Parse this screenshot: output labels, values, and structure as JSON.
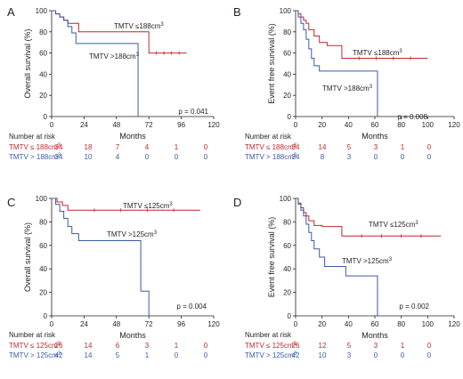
{
  "colors": {
    "red": "#c0272d",
    "blue": "#3c5aa6",
    "axis": "#231f20"
  },
  "risk_title": "Number at risk",
  "chart_data": [
    {
      "type": "line",
      "panel": "A",
      "xlabel": "Months",
      "ylabel": "Overall survival (%)",
      "xlim": [
        0,
        120
      ],
      "ylim": [
        0,
        100
      ],
      "xticks": [
        "0",
        "24",
        "48",
        "72",
        "96",
        "120"
      ],
      "yticks": [
        "0",
        "20",
        "40",
        "60",
        "80",
        "100"
      ],
      "p_value": "p = 0.041",
      "series": [
        {
          "name": "TMTV ≤188cm³",
          "color": "red",
          "x": [
            0,
            3,
            6,
            9,
            12,
            20,
            72,
            100
          ],
          "y": [
            100,
            97,
            94,
            91,
            88,
            80,
            60,
            60
          ]
        },
        {
          "name": "TMTV >188cm³",
          "color": "blue",
          "x": [
            0,
            3,
            6,
            9,
            12,
            15,
            18,
            64,
            64
          ],
          "y": [
            100,
            97,
            94,
            91,
            85,
            79,
            69,
            69,
            0
          ]
        }
      ],
      "risk_table": {
        "rows": [
          {
            "label": "TMTV ≤ 188cm³",
            "color": "red",
            "values": [
              "34",
              "18",
              "7",
              "4",
              "1",
              "0"
            ]
          },
          {
            "label": "TMTV > 188cm³",
            "color": "blue",
            "values": [
              "34",
              "10",
              "4",
              "0",
              "0",
              "0"
            ]
          }
        ]
      }
    },
    {
      "type": "line",
      "panel": "B",
      "xlabel": "Months",
      "ylabel": "Event free survival (%)",
      "xlim": [
        0,
        120
      ],
      "ylim": [
        0,
        100
      ],
      "xticks": [
        "0",
        "20",
        "40",
        "60",
        "80",
        "100",
        "120"
      ],
      "yticks": [
        "0",
        "20",
        "40",
        "60",
        "80",
        "100"
      ],
      "p_value": "p = 0.008",
      "series": [
        {
          "name": "TMTV ≤188cm³",
          "color": "red",
          "x": [
            0,
            2,
            4,
            6,
            8,
            10,
            14,
            18,
            24,
            35,
            100
          ],
          "y": [
            100,
            97,
            94,
            91,
            88,
            82,
            76,
            70,
            67,
            55,
            55
          ]
        },
        {
          "name": "TMTV >188cm³",
          "color": "blue",
          "x": [
            0,
            2,
            4,
            6,
            8,
            10,
            12,
            14,
            18,
            62,
            62
          ],
          "y": [
            100,
            94,
            88,
            82,
            73,
            64,
            55,
            48,
            43,
            43,
            0
          ]
        }
      ],
      "risk_table": {
        "rows": [
          {
            "label": "TMTV ≤ 188cm³",
            "color": "red",
            "values": [
              "34",
              "14",
              "5",
              "3",
              "1",
              "0"
            ]
          },
          {
            "label": "TMTV > 188cm³",
            "color": "blue",
            "values": [
              "34",
              "8",
              "3",
              "0",
              "0",
              "0"
            ]
          }
        ]
      }
    },
    {
      "type": "line",
      "panel": "C",
      "xlabel": "Months",
      "ylabel": "Overall survival (%)",
      "xlim": [
        0,
        120
      ],
      "ylim": [
        0,
        100
      ],
      "xticks": [
        "0",
        "24",
        "48",
        "72",
        "96",
        "120"
      ],
      "yticks": [
        "0",
        "20",
        "40",
        "60",
        "80",
        "100"
      ],
      "p_value": "p = 0.004",
      "series": [
        {
          "name": "TMTV ≤125cm³",
          "color": "red",
          "x": [
            0,
            4,
            8,
            12,
            110
          ],
          "y": [
            100,
            97,
            94,
            90,
            90
          ]
        },
        {
          "name": "TMTV >125cm³",
          "color": "blue",
          "x": [
            0,
            3,
            6,
            9,
            12,
            15,
            20,
            62,
            66,
            72,
            72
          ],
          "y": [
            100,
            95,
            89,
            83,
            76,
            70,
            64,
            64,
            21,
            21,
            0
          ]
        }
      ],
      "risk_table": {
        "rows": [
          {
            "label": "TMTV ≤ 125cm³",
            "color": "red",
            "values": [
              "26",
              "14",
              "6",
              "3",
              "1",
              "0"
            ]
          },
          {
            "label": "TMTV > 125cm³",
            "color": "blue",
            "values": [
              "42",
              "14",
              "5",
              "1",
              "0",
              "0"
            ]
          }
        ]
      }
    },
    {
      "type": "line",
      "panel": "D",
      "xlabel": "Months",
      "ylabel": "Event free survival (%)",
      "xlim": [
        0,
        120
      ],
      "ylim": [
        0,
        100
      ],
      "xticks": [
        "0",
        "20",
        "40",
        "60",
        "80",
        "100",
        "120"
      ],
      "yticks": [
        "0",
        "20",
        "40",
        "60",
        "80",
        "100"
      ],
      "p_value": "p = 0.002",
      "series": [
        {
          "name": "TMTV ≤125cm³",
          "color": "red",
          "x": [
            0,
            2,
            4,
            6,
            8,
            10,
            14,
            20,
            35,
            110
          ],
          "y": [
            100,
            96,
            92,
            88,
            85,
            81,
            77,
            76,
            68,
            68
          ]
        },
        {
          "name": "TMTV >125cm³",
          "color": "blue",
          "x": [
            0,
            2,
            4,
            6,
            8,
            10,
            12,
            14,
            18,
            22,
            38,
            62,
            62
          ],
          "y": [
            100,
            95,
            90,
            85,
            78,
            71,
            64,
            57,
            50,
            42,
            34,
            34,
            0
          ]
        }
      ],
      "risk_table": {
        "rows": [
          {
            "label": "TMTV ≤ 125cm³",
            "color": "red",
            "values": [
              "26",
              "12",
              "5",
              "3",
              "1",
              "0"
            ]
          },
          {
            "label": "TMTV > 125cm³",
            "color": "blue",
            "values": [
              "42",
              "10",
              "3",
              "0",
              "0",
              "0"
            ]
          }
        ]
      }
    }
  ]
}
